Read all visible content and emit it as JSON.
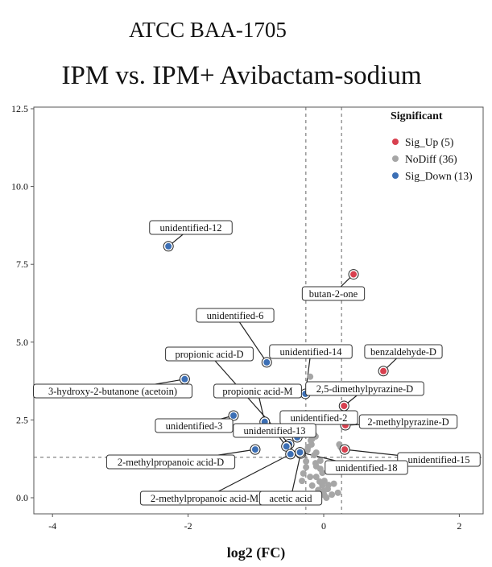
{
  "chart_data": {
    "type": "scatter",
    "title": "ATCC BAA-1705",
    "subtitle": "IPM vs. IPM+ Avibactam-sodium",
    "xlabel": "log2 (FC)",
    "ylabel": "",
    "xlim": [
      -4.45,
      2.35
    ],
    "ylim": [
      -0.4,
      12.6
    ],
    "x_ticks": [
      "-4",
      "-2",
      "0",
      "2"
    ],
    "y_ticks": [
      "0.0",
      "2.5",
      "5.0",
      "7.5",
      "10.0",
      "12.5"
    ],
    "grid": false,
    "thresholds": {
      "log2fc": [
        -0.263,
        0.263
      ],
      "neg_log10_p": 1.3
    },
    "legend": {
      "title": "Significant",
      "placement": "top-right",
      "entries": [
        {
          "label": "Sig_Up (5)",
          "color": "#d8404f"
        },
        {
          "label": "NoDiff (36)",
          "color": "#a6a6a6"
        },
        {
          "label": "Sig_Down (13)",
          "color": "#3c6fb5"
        }
      ]
    },
    "series": [
      {
        "name": "Sig_Up (5)",
        "color": "#d8404f",
        "points": [
          {
            "label": "butan-2-one",
            "x": 0.44,
            "y": 7.18
          },
          {
            "label": "benzaldehyde-D",
            "x": 0.88,
            "y": 4.07
          },
          {
            "label": "2,5-dimethylpyrazine-D",
            "x": 0.3,
            "y": 2.95
          },
          {
            "label": "2-methylpyrazine-D",
            "x": 0.32,
            "y": 2.33
          },
          {
            "label": "unidentified-15",
            "x": 0.31,
            "y": 1.55
          }
        ]
      },
      {
        "name": "NoDiff (36)",
        "color": "#a6a6a6",
        "points": [
          {
            "x": -0.2,
            "y": 3.89
          },
          {
            "x": -0.12,
            "y": 1.97
          },
          {
            "x": -0.17,
            "y": 1.89
          },
          {
            "x": -0.18,
            "y": 1.71
          },
          {
            "x": -0.23,
            "y": 1.63
          },
          {
            "x": -0.24,
            "y": 1.53
          },
          {
            "x": 0.23,
            "y": 1.71
          },
          {
            "x": 0.25,
            "y": 1.63
          },
          {
            "x": -0.26,
            "y": 1.17
          },
          {
            "x": -0.12,
            "y": 1.11
          },
          {
            "x": -0.11,
            "y": 1.01
          },
          {
            "x": -0.05,
            "y": 0.93
          },
          {
            "x": -0.02,
            "y": 0.8
          },
          {
            "x": -0.3,
            "y": 0.78
          },
          {
            "x": -0.2,
            "y": 0.67
          },
          {
            "x": -0.32,
            "y": 0.54
          },
          {
            "x": -0.11,
            "y": 0.67
          },
          {
            "x": -0.06,
            "y": 0.52
          },
          {
            "x": -0.02,
            "y": 0.39
          },
          {
            "x": 0.0,
            "y": 0.21
          },
          {
            "x": 0.01,
            "y": 0.08
          },
          {
            "x": 0.06,
            "y": 0.28
          },
          {
            "x": 0.07,
            "y": 0.41
          },
          {
            "x": 0.21,
            "y": 0.16
          },
          {
            "x": 0.04,
            "y": 0.0
          },
          {
            "x": -0.14,
            "y": 1.37
          },
          {
            "x": -0.11,
            "y": 1.45
          },
          {
            "x": -0.26,
            "y": 0.98
          },
          {
            "x": -0.05,
            "y": 1.19
          },
          {
            "x": 0.01,
            "y": 0.54
          },
          {
            "x": -0.17,
            "y": 0.39
          },
          {
            "x": -0.14,
            "y": 2.02
          },
          {
            "x": -0.19,
            "y": 1.84
          },
          {
            "x": 0.12,
            "y": 0.1
          },
          {
            "x": -0.08,
            "y": 0.25
          },
          {
            "x": 0.15,
            "y": 0.45
          }
        ]
      },
      {
        "name": "Sig_Down (13)",
        "color": "#3c6fb5",
        "points": [
          {
            "label": "unidentified-12",
            "x": -2.29,
            "y": 8.08
          },
          {
            "label": "unidentified-6",
            "x": -0.84,
            "y": 4.35
          },
          {
            "label": "propionic acid-D",
            "x": -0.51,
            "y": 1.72
          },
          {
            "label": "3-hydroxy-2-butanone (acetoin)",
            "x": -2.05,
            "y": 3.81
          },
          {
            "label": "unidentified-14",
            "x": -0.27,
            "y": 3.34
          },
          {
            "label": "propionic acid-M",
            "x": -0.87,
            "y": 2.44
          },
          {
            "label": "unidentified-3",
            "x": -1.33,
            "y": 2.64
          },
          {
            "label": "unidentified-2",
            "x": -0.39,
            "y": 1.94
          },
          {
            "label": "unidentified-13",
            "x": -0.55,
            "y": 1.65
          },
          {
            "label": "2-methylpropanoic acid-D",
            "x": -1.01,
            "y": 1.55
          },
          {
            "label": "2-methylpropanoic acid-M",
            "x": -0.49,
            "y": 1.4
          },
          {
            "label": "acetic acid",
            "x": -0.34,
            "y": 1.42
          },
          {
            "label": "unidentified-18",
            "x": -0.35,
            "y": 1.46
          }
        ]
      }
    ]
  }
}
